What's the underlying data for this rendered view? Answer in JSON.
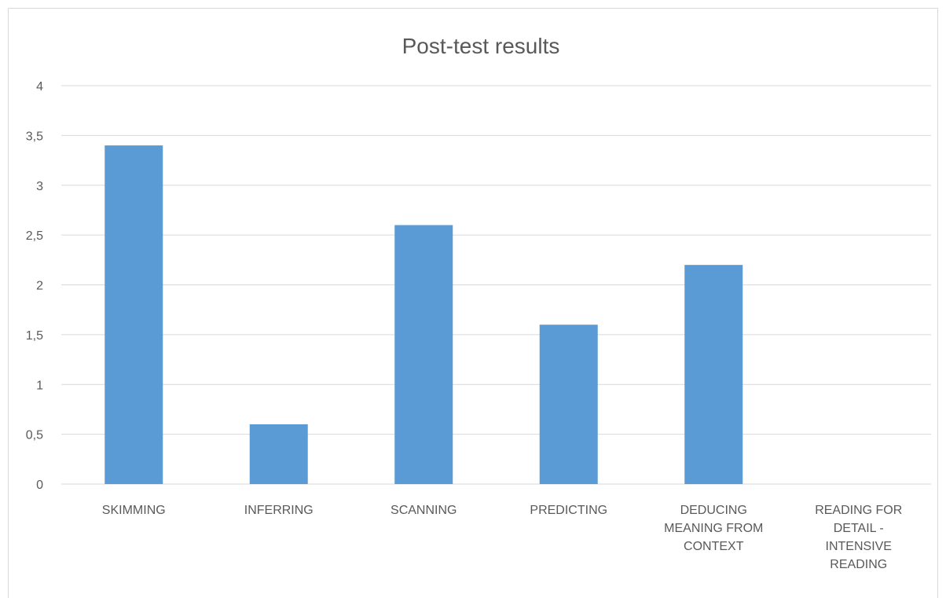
{
  "chart_data": {
    "type": "bar",
    "title": "Post-test results",
    "categories": [
      "SKIMMING",
      "INFERRING",
      "SCANNING",
      "PREDICTING",
      "DEDUCING MEANING FROM CONTEXT",
      "READING FOR DETAIL - INTENSIVE READING"
    ],
    "values": [
      3.4,
      0.6,
      2.6,
      1.6,
      2.2,
      0
    ],
    "color": "#5b9bd5",
    "ylim": [
      0,
      4
    ],
    "yticks": [
      0,
      {
        "value": 0.5,
        "label": "0,5"
      },
      1,
      {
        "value": 1.5,
        "label": "1,5"
      },
      2,
      {
        "value": 2.5,
        "label": "2,5"
      },
      3,
      {
        "value": 3.5,
        "label": "3,5"
      },
      4
    ],
    "grid": true
  }
}
